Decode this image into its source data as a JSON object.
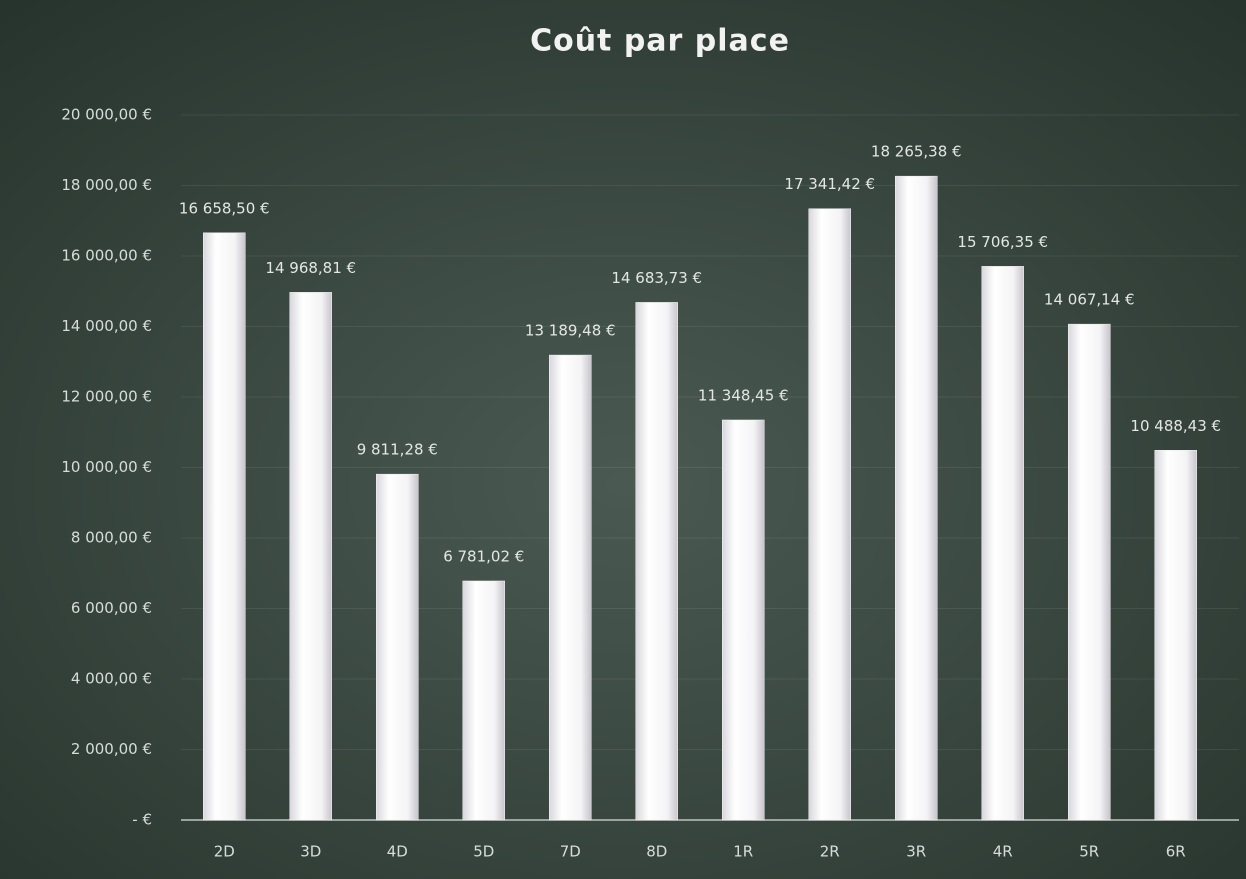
{
  "chart_data": {
    "type": "bar",
    "title": "Coût par place",
    "categories": [
      "2D",
      "3D",
      "4D",
      "5D",
      "7D",
      "8D",
      "1R",
      "2R",
      "3R",
      "4R",
      "5R",
      "6R"
    ],
    "values": [
      16658.5,
      14968.81,
      9811.28,
      6781.02,
      13189.48,
      14683.73,
      11348.45,
      17341.42,
      18265.38,
      15706.35,
      14067.14,
      10488.43
    ],
    "value_labels": [
      "16 658,50 €",
      "14 968,81 €",
      "9 811,28 €",
      "6 781,02 €",
      "13 189,48 €",
      "14 683,73 €",
      "11 348,45 €",
      "17 341,42 €",
      "18 265,38 €",
      "15 706,35 €",
      "14 067,14 €",
      "10 488,43 €"
    ],
    "color": "#f4f4f6",
    "ylim": [
      0,
      20000
    ],
    "yticks": [
      {
        "value": 0,
        "label": "- €"
      },
      {
        "value": 2000,
        "label": "2 000,00 €"
      },
      {
        "value": 4000,
        "label": "4 000,00 €"
      },
      {
        "value": 6000,
        "label": "6 000,00 €"
      },
      {
        "value": 8000,
        "label": "8 000,00 €"
      },
      {
        "value": 10000,
        "label": "10 000,00 €"
      },
      {
        "value": 12000,
        "label": "12 000,00 €"
      },
      {
        "value": 14000,
        "label": "14 000,00 €"
      },
      {
        "value": 16000,
        "label": "16 000,00 €"
      },
      {
        "value": 18000,
        "label": "18 000,00 €"
      },
      {
        "value": 20000,
        "label": "20 000,00 €"
      }
    ],
    "grid": true
  }
}
